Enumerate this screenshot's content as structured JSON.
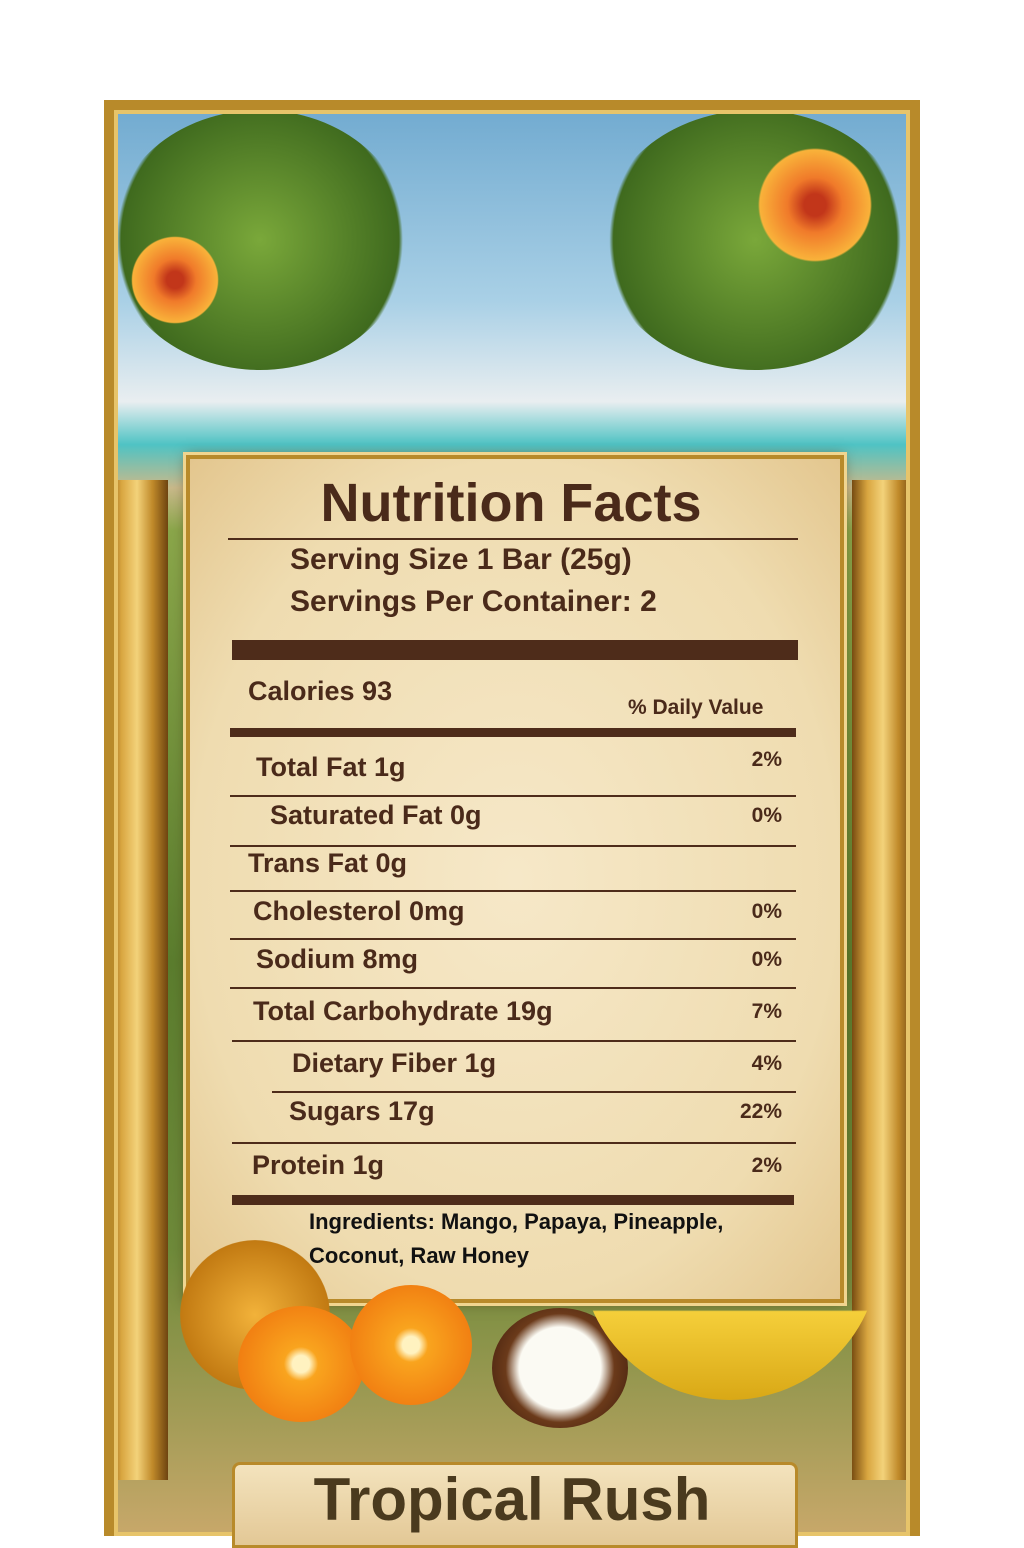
{
  "label": {
    "title": "Nutrition Facts",
    "serving_size": "Serving Size 1 Bar (25g)",
    "servings_per_container": "Servings Per Container: 2",
    "calories": "Calories 93",
    "daily_value_header": "% Daily Value",
    "rows": [
      {
        "name": "Total Fat 1g",
        "dv": "2%"
      },
      {
        "name": "Saturated Fat 0g",
        "dv": "0%"
      },
      {
        "name": "Trans Fat 0g",
        "dv": ""
      },
      {
        "name": "Cholesterol 0mg",
        "dv": "0%"
      },
      {
        "name": "Sodium 8mg",
        "dv": "0%"
      },
      {
        "name": "Total Carbohydrate 19g",
        "dv": "7%"
      },
      {
        "name": "Dietary Fiber 1g",
        "dv": "4%"
      },
      {
        "name": "Sugars 17g",
        "dv": "22%"
      },
      {
        "name": "Protein 1g",
        "dv": "2%"
      }
    ],
    "ingredients_line1": "Ingredients: Mango, Papaya, Pineapple,",
    "ingredients_line2": "Coconut, Raw Honey"
  },
  "product_name": "Tropical Rush",
  "colors": {
    "text": "#4a2a1a",
    "rule": "#4e2c1a",
    "parchment": "#f3e3bd",
    "gold": "#b88a2a"
  }
}
